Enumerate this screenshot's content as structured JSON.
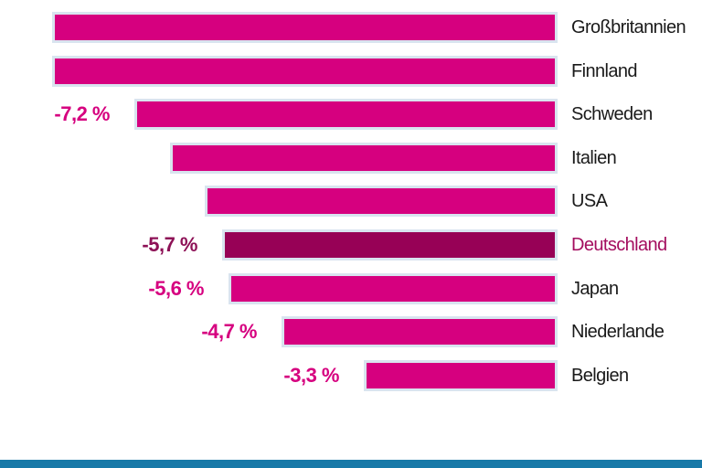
{
  "chart_data": {
    "type": "bar",
    "orientation": "horizontal",
    "unit": "%",
    "value_axis_range": [
      -8.6,
      0
    ],
    "grid": false,
    "legend": false,
    "bars_right_aligned": true,
    "rows": [
      {
        "country": "Großbritannien",
        "value": -8.6,
        "value_label": "",
        "highlighted": false
      },
      {
        "country": "Finnland",
        "value": -8.6,
        "value_label": "",
        "highlighted": false
      },
      {
        "country": "Schweden",
        "value": -7.2,
        "value_label": "-7,2 %",
        "highlighted": false
      },
      {
        "country": "Italien",
        "value": -6.6,
        "value_label": "",
        "highlighted": false
      },
      {
        "country": "USA",
        "value": -6.0,
        "value_label": "",
        "highlighted": false
      },
      {
        "country": "Deutschland",
        "value": -5.7,
        "value_label": "-5,7 %",
        "highlighted": true
      },
      {
        "country": "Japan",
        "value": -5.6,
        "value_label": "-5,6 %",
        "highlighted": false
      },
      {
        "country": "Niederlande",
        "value": -4.7,
        "value_label": "-4,7 %",
        "highlighted": false
      },
      {
        "country": "Belgien",
        "value": -3.3,
        "value_label": "-3,3 %",
        "highlighted": false
      }
    ]
  },
  "colors": {
    "bar_fill": "#d6007f",
    "bar_fill_highlight": "#970156",
    "bar_border": "#d9e4ef",
    "value_label": "#d6007f",
    "value_label_highlight": "#8d1156",
    "country_label": "#1a1a1a",
    "country_label_highlight": "#a40e5f",
    "footer_band": "#1879a8",
    "background": "#ffffff"
  }
}
